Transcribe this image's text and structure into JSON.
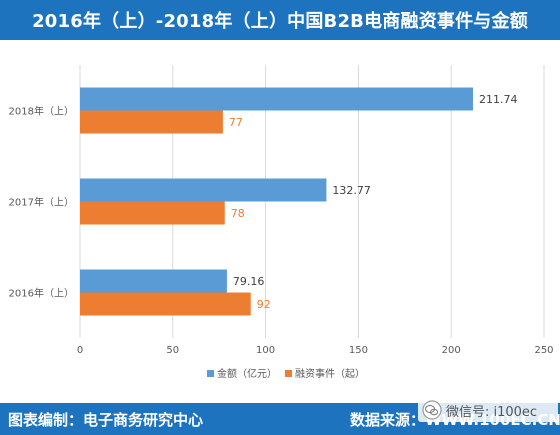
{
  "header": {
    "title": "2016年（上）-2018年（上）中国B2B电商融资事件与金额"
  },
  "footer": {
    "left_text": "图表编制：电子商务研究中心",
    "right_text": "数据来源：WWW.100EC.CN"
  },
  "watermark": {
    "text": "微信号: i100ec"
  },
  "colors": {
    "bar_blue": "#5b9bd5",
    "bar_orange": "#ed7d31",
    "banner_blue": "#1e73be"
  },
  "chart_data": {
    "type": "bar",
    "orientation": "horizontal",
    "categories": [
      "2018年（上）",
      "2017年（上）",
      "2016年（上）"
    ],
    "series": [
      {
        "name": "金额（亿元）",
        "values": [
          211.74,
          132.77,
          79.16
        ],
        "color": "#5b9bd5"
      },
      {
        "name": "融资事件（起）",
        "values": [
          77,
          78,
          92
        ],
        "color": "#ed7d31"
      }
    ],
    "value_labels": {
      "金额（亿元）": [
        "211.74",
        "132.77",
        "79.16"
      ],
      "融资事件（起）": [
        "77",
        "78",
        "92"
      ]
    },
    "x_ticks": [
      "0",
      "50",
      "100",
      "150",
      "200",
      "250"
    ],
    "xlim": [
      0,
      250
    ],
    "grid": true,
    "legend_position": "bottom"
  }
}
